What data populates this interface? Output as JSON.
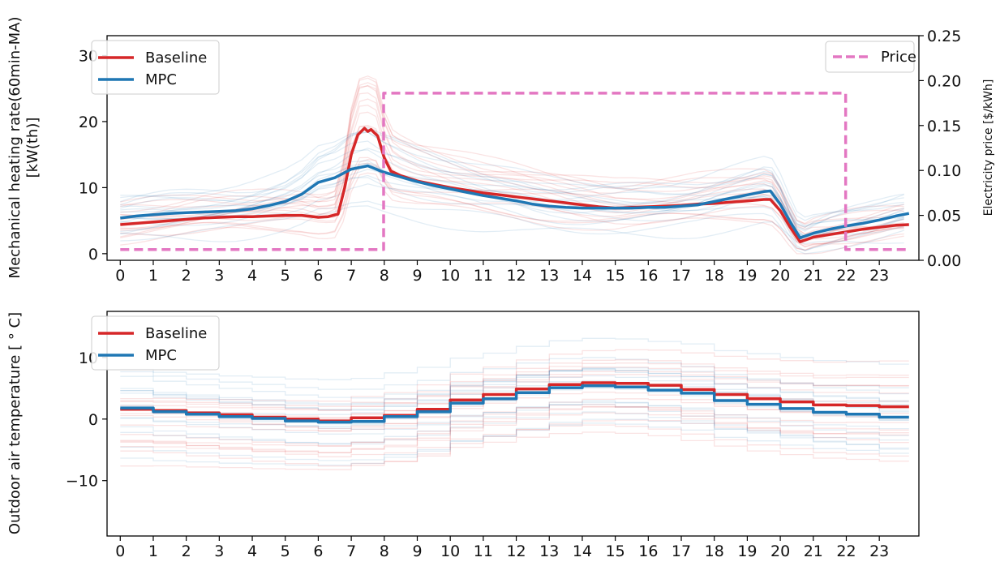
{
  "chart_data": [
    {
      "type": "line",
      "ylabel": "Mechanical heating rate(60min-MA)\n[kW(th)]",
      "ylabel_lines": [
        "Mechanical heating rate(60min-MA)",
        "[kW(th)]"
      ],
      "y2label": "Electricity price [$/kWh]",
      "x_ticks": [
        "0",
        "1",
        "2",
        "3",
        "4",
        "5",
        "6",
        "7",
        "8",
        "9",
        "10",
        "11",
        "12",
        "13",
        "14",
        "15",
        "16",
        "17",
        "18",
        "19",
        "20",
        "21",
        "22",
        "23"
      ],
      "xlim": [
        -0.4,
        24.2
      ],
      "ylim": [
        -1,
        33
      ],
      "yticks": [
        0,
        10,
        20,
        30
      ],
      "y2lim": [
        0,
        0.25
      ],
      "y2ticks": [
        "0.00",
        "0.05",
        "0.10",
        "0.15",
        "0.20",
        "0.25"
      ],
      "grid": false,
      "legend_left": [
        "Baseline",
        "MPC"
      ],
      "legend_right": [
        "Price"
      ],
      "series": [
        {
          "name": "Baseline",
          "color": "#d62728",
          "x": [
            0,
            0.5,
            1,
            1.5,
            2,
            2.5,
            3,
            3.5,
            4,
            4.5,
            5,
            5.5,
            6,
            6.3,
            6.6,
            6.8,
            7,
            7.2,
            7.4,
            7.5,
            7.6,
            7.8,
            8,
            8.2,
            8.5,
            9,
            9.5,
            10,
            10.5,
            11,
            11.5,
            12,
            12.5,
            13,
            13.5,
            14,
            14.5,
            15,
            15.5,
            16,
            16.5,
            17,
            17.5,
            18,
            18.5,
            19,
            19.5,
            19.7,
            20,
            20.3,
            20.6,
            21,
            21.5,
            22,
            22.5,
            23,
            23.5,
            23.9
          ],
          "values": [
            4.4,
            4.6,
            4.8,
            5.0,
            5.2,
            5.4,
            5.5,
            5.6,
            5.6,
            5.7,
            5.8,
            5.8,
            5.5,
            5.6,
            6.0,
            10.0,
            15.0,
            18.0,
            19.0,
            18.5,
            18.8,
            17.8,
            14.5,
            12.5,
            11.8,
            11.0,
            10.5,
            10.0,
            9.6,
            9.2,
            8.9,
            8.6,
            8.3,
            8.0,
            7.7,
            7.4,
            7.1,
            6.9,
            7.0,
            7.1,
            7.2,
            7.3,
            7.5,
            7.6,
            7.8,
            8.0,
            8.2,
            8.2,
            6.5,
            4.0,
            1.8,
            2.5,
            2.9,
            3.3,
            3.7,
            4.0,
            4.3,
            4.4
          ]
        },
        {
          "name": "MPC",
          "color": "#1f77b4",
          "x": [
            0,
            0.5,
            1,
            1.5,
            2,
            2.5,
            3,
            3.5,
            4,
            4.5,
            5,
            5.5,
            6,
            6.5,
            7,
            7.5,
            8,
            8.5,
            9,
            9.5,
            10,
            10.5,
            11,
            11.5,
            12,
            12.5,
            13,
            13.5,
            14,
            14.5,
            15,
            15.5,
            16,
            16.5,
            17,
            17.5,
            18,
            18.5,
            19,
            19.5,
            19.7,
            20,
            20.3,
            20.6,
            21,
            21.5,
            22,
            22.5,
            23,
            23.5,
            23.9
          ],
          "values": [
            5.4,
            5.7,
            5.9,
            6.1,
            6.2,
            6.3,
            6.4,
            6.5,
            6.8,
            7.3,
            7.9,
            9.0,
            10.8,
            11.5,
            12.8,
            13.3,
            12.3,
            11.6,
            10.9,
            10.3,
            9.8,
            9.3,
            8.8,
            8.4,
            8.0,
            7.5,
            7.2,
            7.0,
            6.9,
            6.9,
            6.9,
            6.9,
            7.0,
            7.0,
            7.2,
            7.4,
            7.9,
            8.4,
            8.9,
            9.4,
            9.5,
            7.5,
            4.8,
            2.4,
            3.1,
            3.7,
            4.2,
            4.6,
            5.1,
            5.7,
            6.1
          ]
        },
        {
          "name": "Price",
          "color": "#e377c2",
          "dashed": true,
          "axis": "right",
          "x": [
            0,
            7.98,
            7.98,
            21.98,
            21.98,
            23.9
          ],
          "values": [
            0.012,
            0.012,
            0.186,
            0.186,
            0.012,
            0.012
          ]
        }
      ]
    },
    {
      "type": "line",
      "ylabel": "Outdoor air temperature [$^\\circ$C]",
      "ylabel_display": "Outdoor air temperature [ ° C]",
      "x_ticks": [
        "0",
        "1",
        "2",
        "3",
        "4",
        "5",
        "6",
        "7",
        "8",
        "9",
        "10",
        "11",
        "12",
        "13",
        "14",
        "15",
        "16",
        "17",
        "18",
        "19",
        "20",
        "21",
        "22",
        "23"
      ],
      "xlim": [
        -0.4,
        24.2
      ],
      "ylim": [
        -19,
        17.5
      ],
      "yticks": [
        "−10",
        "0",
        "10"
      ],
      "ytick_values": [
        -10,
        0,
        10
      ],
      "grid": false,
      "legend_left": [
        "Baseline",
        "MPC"
      ],
      "series": [
        {
          "name": "Baseline",
          "color": "#d62728",
          "step": true,
          "values": [
            1.6,
            1.4,
            1.0,
            0.7,
            0.3,
            0.0,
            -0.3,
            0.2,
            0.6,
            1.6,
            3.1,
            4.0,
            4.9,
            5.6,
            5.9,
            5.8,
            5.5,
            4.8,
            4.0,
            3.3,
            2.8,
            2.3,
            2.2,
            2.0
          ]
        },
        {
          "name": "MPC",
          "color": "#1f77b4",
          "step": true,
          "values": [
            1.8,
            1.2,
            0.8,
            0.4,
            0.1,
            -0.3,
            -0.5,
            -0.4,
            0.4,
            1.2,
            2.6,
            3.3,
            4.3,
            5.1,
            5.4,
            5.2,
            4.7,
            4.2,
            3.0,
            2.4,
            1.7,
            1.1,
            0.8,
            0.3
          ]
        }
      ]
    }
  ]
}
